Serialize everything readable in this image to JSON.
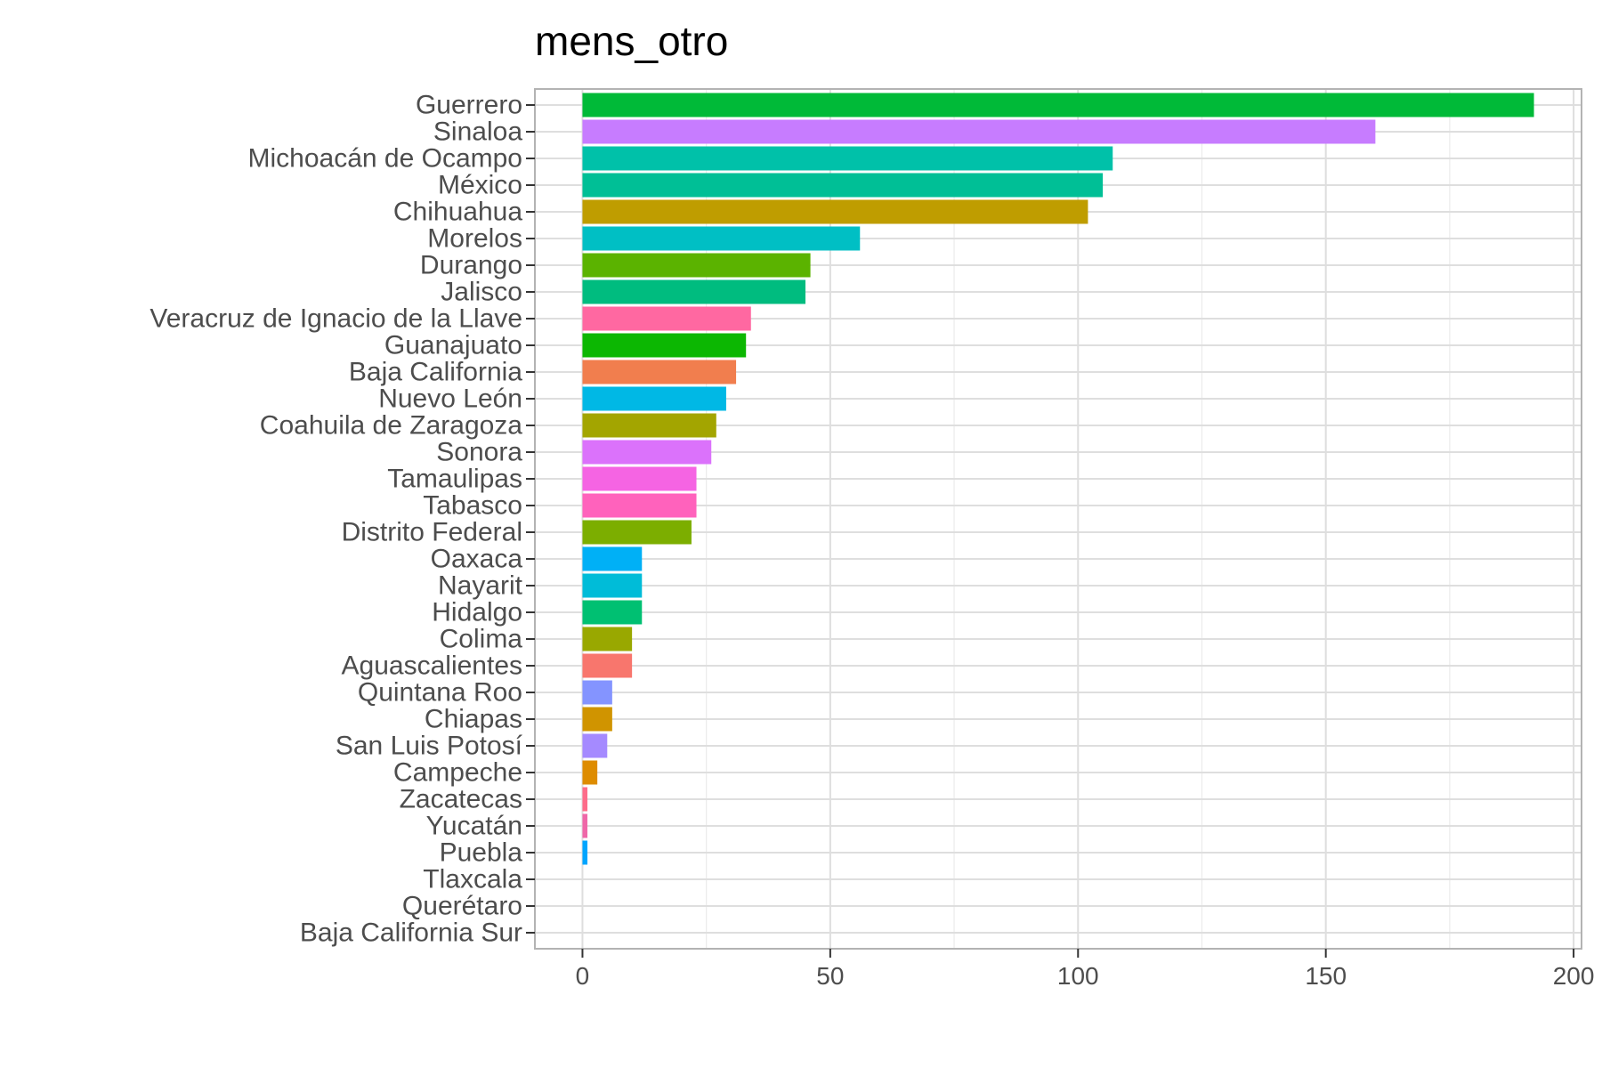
{
  "chart_data": {
    "type": "bar",
    "orientation": "horizontal",
    "title": "mens_otro",
    "xlabel": "",
    "ylabel": "",
    "xlim": [
      -9.6,
      201.6
    ],
    "x_ticks": [
      0,
      50,
      100,
      150,
      200
    ],
    "grid": true,
    "legend": "none",
    "categories": [
      "Guerrero",
      "Sinaloa",
      "Michoacán de Ocampo",
      "México",
      "Chihuahua",
      "Morelos",
      "Durango",
      "Jalisco",
      "Veracruz de Ignacio de la Llave",
      "Guanajuato",
      "Baja California",
      "Nuevo León",
      "Coahuila de Zaragoza",
      "Sonora",
      "Tamaulipas",
      "Tabasco",
      "Distrito Federal",
      "Oaxaca",
      "Nayarit",
      "Hidalgo",
      "Colima",
      "Aguascalientes",
      "Quintana Roo",
      "Chiapas",
      "San Luis Potosí",
      "Campeche",
      "Zacatecas",
      "Yucatán",
      "Puebla",
      "Tlaxcala",
      "Querétaro",
      "Baja California Sur"
    ],
    "values": [
      192,
      160,
      107,
      105,
      102,
      56,
      46,
      45,
      34,
      33,
      31,
      29,
      27,
      26,
      23,
      23,
      22,
      12,
      12,
      12,
      10,
      10,
      6,
      6,
      5,
      3,
      1,
      1,
      1,
      0,
      0,
      0
    ],
    "colors": [
      "#00BA38",
      "#C77CFF",
      "#00C1A9",
      "#00BF96",
      "#BF9D00",
      "#00BFC4",
      "#5BB300",
      "#00BC7F",
      "#FF68A1",
      "#0CB702",
      "#F17E4E",
      "#00B8E5",
      "#A3A500",
      "#DB72FB",
      "#F564E3",
      "#FF62BC",
      "#7CAE00",
      "#00B0F6",
      "#00BCD8",
      "#00C072",
      "#99A800",
      "#F8766D",
      "#8494FF",
      "#D09400",
      "#A58AFF",
      "#DE8C00",
      "#FD6C8A",
      "#EF67A8",
      "#00A5FF",
      "#E76BF3",
      "#619CFF",
      "#E08B00"
    ]
  }
}
